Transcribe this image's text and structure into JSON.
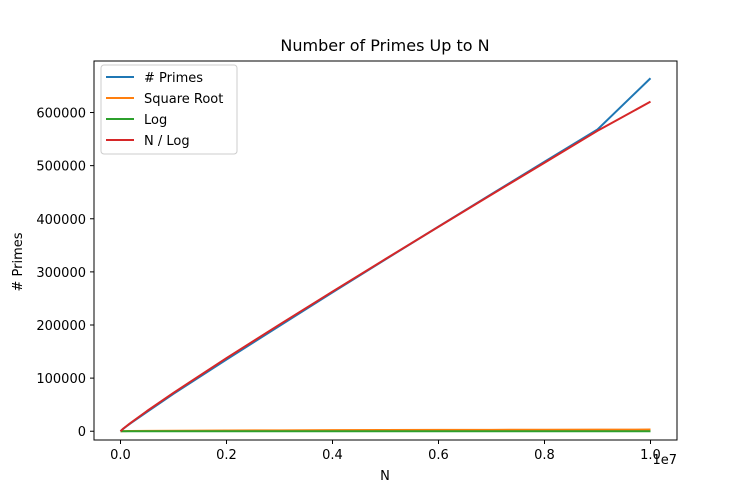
{
  "chart_data": {
    "type": "line",
    "title": "Number of Primes Up to N",
    "xlabel": "N",
    "ylabel": "# Primes",
    "x_offset_label": "1e7",
    "xlim": [
      -0.05,
      1.05
    ],
    "ylim": [
      -16500,
      697000
    ],
    "x_scale_multiplier": 10000000,
    "xticks": [
      0.0,
      0.2,
      0.4,
      0.6,
      0.8,
      1.0
    ],
    "xtick_labels": [
      "0.0",
      "0.2",
      "0.4",
      "0.6",
      "0.8",
      "1.0"
    ],
    "yticks": [
      0,
      100000,
      200000,
      300000,
      400000,
      500000,
      600000
    ],
    "ytick_labels": [
      "0",
      "100000",
      "200000",
      "300000",
      "400000",
      "500000",
      "600000"
    ],
    "grid": false,
    "legend_position": "top-left",
    "x": [
      0.0,
      0.005,
      0.01,
      0.02,
      0.05,
      0.1,
      0.2,
      0.3,
      0.4,
      0.5,
      0.6,
      0.7,
      0.8,
      0.9,
      1.0
    ],
    "series": [
      {
        "name": "# Primes",
        "color": "#1f77b4",
        "values": [
          0,
          4536,
          8392,
          15662,
          36374,
          70435,
          135072,
          198202,
          261273,
          323573,
          385154,
          446516,
          507377,
          568067,
          664579
        ]
      },
      {
        "name": "Square Root",
        "color": "#ff7f0e",
        "values": [
          0,
          224,
          316,
          447,
          707,
          1000,
          1414,
          1732,
          2000,
          2236,
          2449,
          2646,
          2828,
          3000,
          3162
        ]
      },
      {
        "name": "Log",
        "color": "#2ca02c",
        "values": [
          0,
          10.8,
          11.5,
          12.2,
          13.1,
          13.8,
          14.5,
          14.9,
          15.2,
          15.4,
          15.6,
          15.8,
          15.9,
          16.0,
          16.1
        ]
      },
      {
        "name": "N / Log",
        "color": "#d62728",
        "values": [
          0,
          4628,
          8686,
          16372,
          38102,
          72382,
          137734,
          200866,
          262990,
          324260,
          385026,
          445452,
          505500,
          565600,
          620421
        ]
      }
    ]
  }
}
